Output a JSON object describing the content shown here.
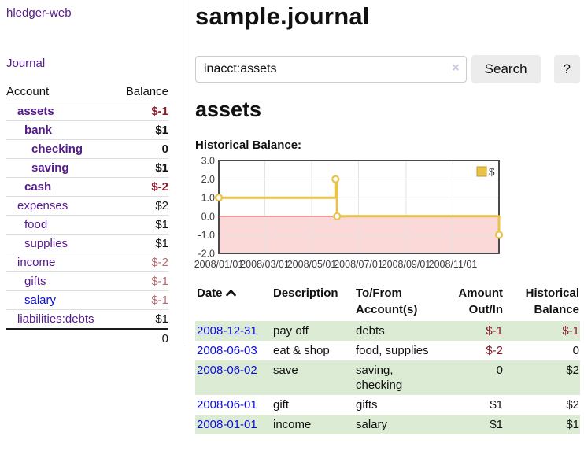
{
  "app": {
    "brand": "hledger-web"
  },
  "sidebar": {
    "nav_journal": "Journal",
    "table": {
      "header_account": "Account",
      "header_balance": "Balance",
      "rows": [
        {
          "account": "assets",
          "balance": "$-1"
        },
        {
          "account": "bank",
          "balance": "$1"
        },
        {
          "account": "checking",
          "balance": "0"
        },
        {
          "account": "saving",
          "balance": "$1"
        },
        {
          "account": "cash",
          "balance": "$-2"
        },
        {
          "account": "expenses",
          "balance": "$2"
        },
        {
          "account": "food",
          "balance": "$1"
        },
        {
          "account": "supplies",
          "balance": "$1"
        },
        {
          "account": "income",
          "balance": "$-2"
        },
        {
          "account": "gifts",
          "balance": "$-1"
        },
        {
          "account": "salary",
          "balance": "$-1"
        },
        {
          "account": "liabilities:debts",
          "balance": "$1"
        }
      ],
      "total": "0"
    }
  },
  "header": {
    "title": "sample.journal"
  },
  "search": {
    "value": "inacct:assets",
    "clear_label": "×",
    "button_label": "Search",
    "help_label": "?"
  },
  "main": {
    "account_title": "assets",
    "chart_label": "Historical Balance:"
  },
  "chart_data": {
    "type": "line",
    "step": true,
    "title": "Historical Balance",
    "legend": "$",
    "x_range": [
      "2008/01/01",
      "2008/12/31"
    ],
    "ylim": [
      -2.0,
      3.0
    ],
    "yticks": [
      "3.0",
      "2.0",
      "1.0",
      "0.0",
      "-1.0",
      "-2.0"
    ],
    "xticks": [
      "2008/01/01",
      "2008/03/01",
      "2008/05/01",
      "2008/07/01",
      "2008/09/01",
      "2008/11/01"
    ],
    "series": [
      {
        "name": "$",
        "color": "#e9c24a",
        "points": [
          {
            "date": "2008/01/01",
            "value": 1
          },
          {
            "date": "2008/06/01",
            "value": 2
          },
          {
            "date": "2008/06/03",
            "value": 0
          },
          {
            "date": "2008/12/31",
            "value": -1
          }
        ]
      }
    ],
    "colors": {
      "negative_region": "#fbd9d9",
      "zero_line": "#8b0000",
      "grid": "#e4e4e4",
      "border": "#4a4a4a",
      "marker_fill": "#ffffff",
      "legend_swatch_border": "#c09a2e"
    }
  },
  "register": {
    "headers": {
      "date": "Date",
      "description": "Description",
      "accounts": "To/From Account(s)",
      "amount": "Amount Out/In",
      "balance": "Historical Balance"
    },
    "rows": [
      {
        "date": "2008-12-31",
        "description": "pay off",
        "accounts": "debts",
        "amount": "$-1",
        "balance": "$-1"
      },
      {
        "date": "2008-06-03",
        "description": "eat & shop",
        "accounts": "food, supplies",
        "amount": "$-2",
        "balance": "0"
      },
      {
        "date": "2008-06-02",
        "description": "save",
        "accounts": "saving, checking",
        "amount": "0",
        "balance": "$2"
      },
      {
        "date": "2008-06-01",
        "description": "gift",
        "accounts": "gifts",
        "amount": "$1",
        "balance": "$2"
      },
      {
        "date": "2008-01-01",
        "description": "income",
        "accounts": "salary",
        "amount": "$1",
        "balance": "$1"
      }
    ]
  }
}
